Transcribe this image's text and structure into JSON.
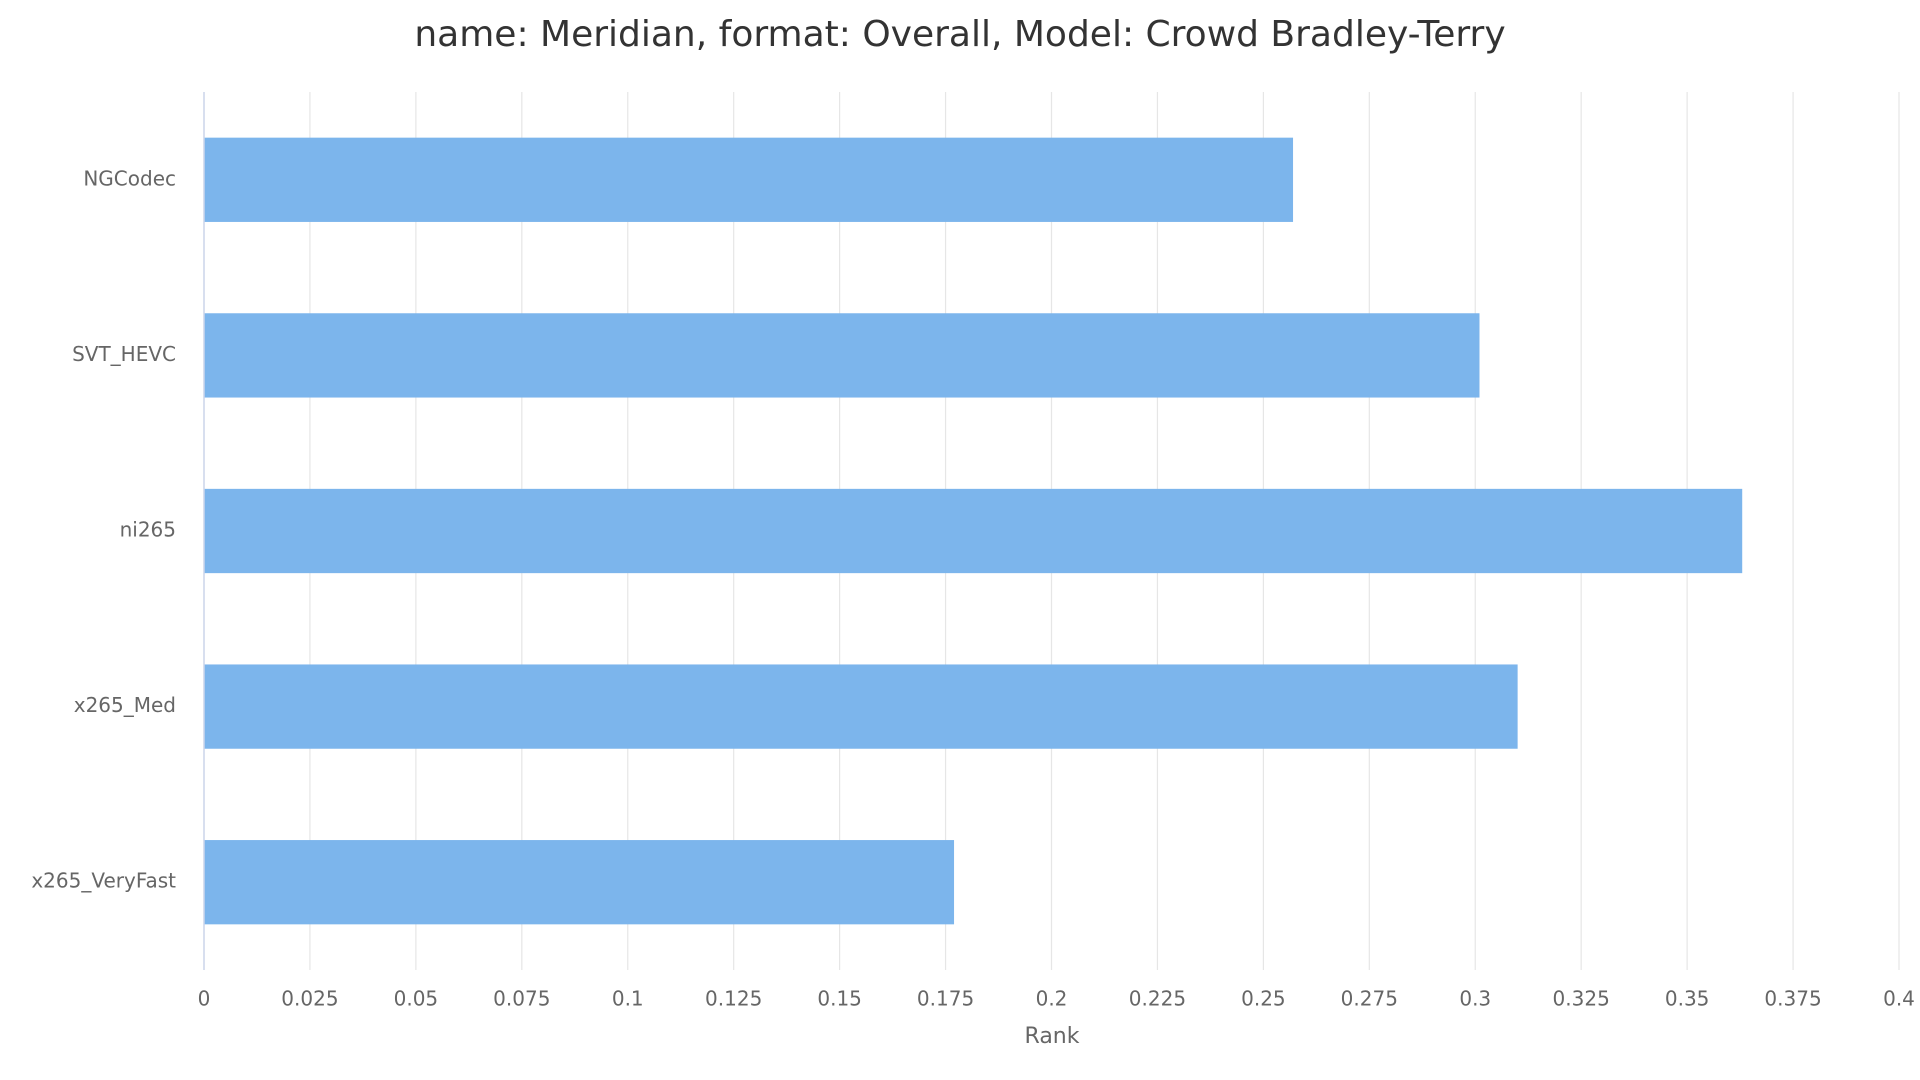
{
  "chart_data": {
    "type": "hbar",
    "title": "name: Meridian, format: Overall, Model: Crowd Bradley-Terry",
    "x_label": "Rank",
    "categories": [
      "NGCodec",
      "SVT_HEVC",
      "ni265",
      "x265_Med",
      "x265_VeryFast"
    ],
    "values": [
      0.257,
      0.301,
      0.363,
      0.31,
      0.177
    ],
    "color": "#7cb5ec",
    "xlim": [
      0,
      0.4
    ],
    "xticks": [
      0,
      0.025,
      0.05,
      0.075,
      0.1,
      0.125,
      0.15,
      0.175,
      0.2,
      0.225,
      0.25,
      0.275,
      0.3,
      0.325,
      0.35,
      0.375,
      0.4
    ],
    "grid": true
  }
}
